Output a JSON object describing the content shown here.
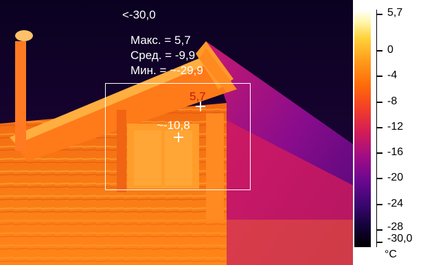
{
  "overlay": {
    "top_value": "<-30,0",
    "stats": {
      "max": "Макс. = 5,7",
      "avg": "Сред. = -9,9",
      "min": "Мин. = ~-29,9"
    },
    "marker_hot": "5,7",
    "marker_cold": "~-10,8"
  },
  "scale": {
    "ticks": [
      "5,7",
      "0",
      "-4",
      "-8",
      "-12",
      "-16",
      "-20",
      "-24",
      "-28",
      "-30,0"
    ],
    "unit": "°C"
  },
  "colors": {
    "hot_marker": "#c01818",
    "overlay_text": "#ffffff"
  }
}
